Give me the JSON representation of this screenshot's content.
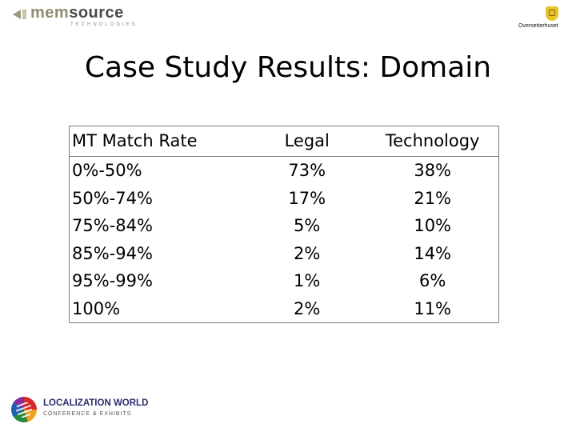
{
  "header": {
    "logo_left": {
      "brand_part1": "mem",
      "brand_part2": "source",
      "tagline": "TECHNOLOGIES"
    },
    "logo_right": {
      "name": "Oversetterhuset"
    }
  },
  "slide": {
    "title": "Case Study Results: Domain"
  },
  "table": {
    "headers": [
      "MT Match Rate",
      "Legal",
      "Technology"
    ],
    "rows": [
      [
        "0%-50%",
        "73%",
        "38%"
      ],
      [
        "50%-74%",
        "17%",
        "21%"
      ],
      [
        "75%-84%",
        "5%",
        "10%"
      ],
      [
        "85%-94%",
        "2%",
        "14%"
      ],
      [
        "95%-99%",
        "1%",
        "6%"
      ],
      [
        "100%",
        "2%",
        "11%"
      ]
    ]
  },
  "footer": {
    "logo": {
      "name": "LOCALIZATION WORLD",
      "tagline": "CONFERENCE & EXHIBITS"
    }
  }
}
